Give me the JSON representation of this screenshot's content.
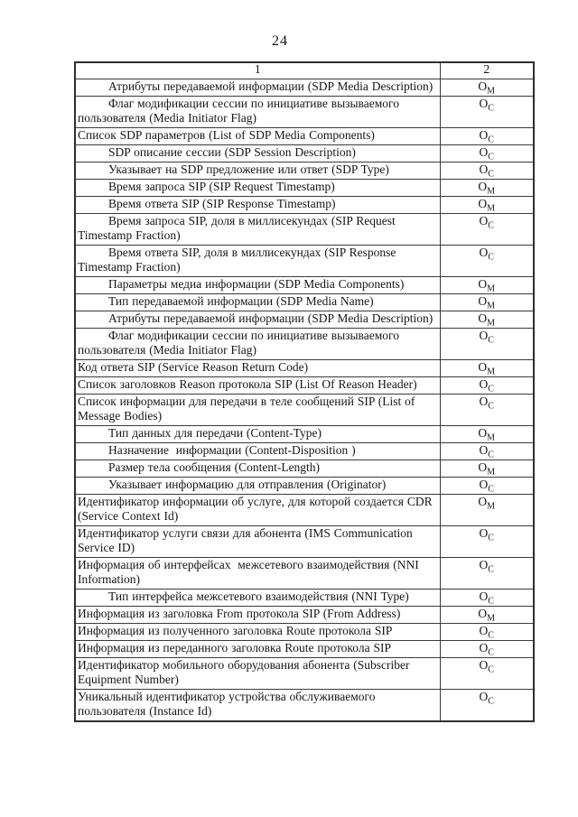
{
  "page": {
    "number": "24"
  },
  "table": {
    "headers": [
      "1",
      "2"
    ],
    "rows": [
      {
        "label": "Атрибуты передаваемой информации (SDP Media Description)",
        "indent": true,
        "value": {
          "base": "О",
          "sub": "М"
        }
      },
      {
        "label": "Флаг модификации сессии по инициативе вызываемого пользователя (Media Initiator Flag)",
        "indent": true,
        "value": {
          "base": "О",
          "sub": "С"
        }
      },
      {
        "label": "Список SDP параметров (List of SDP Media Components)",
        "indent": false,
        "value": {
          "base": "О",
          "sub": "С"
        }
      },
      {
        "label": "SDP описание сессии (SDP Session Description)",
        "indent": true,
        "value": {
          "base": "О",
          "sub": "С"
        }
      },
      {
        "label": "Указывает на SDP предложение или ответ (SDP Type)",
        "indent": true,
        "value": {
          "base": "О",
          "sub": "С"
        }
      },
      {
        "label": "Время запроса SIP (SIP Request Timestamp)",
        "indent": true,
        "value": {
          "base": "О",
          "sub": "М"
        }
      },
      {
        "label": "Время ответа SIP (SIP Response Timestamp)",
        "indent": true,
        "value": {
          "base": "О",
          "sub": "М"
        }
      },
      {
        "label": "Время запроса SIP, доля в миллисекундах (SIP Request Timestamp Fraction)",
        "indent": true,
        "value": {
          "base": "О",
          "sub": "С"
        }
      },
      {
        "label": "Время ответа SIP, доля в миллисекундах (SIP Response Timestamp Fraction)",
        "indent": true,
        "value": {
          "base": "О",
          "sub": "С"
        }
      },
      {
        "label": "Параметры медиа информации (SDP Media Components)",
        "indent": true,
        "value": {
          "base": "О",
          "sub": "М"
        }
      },
      {
        "label": "Тип передаваемой информации (SDP Media Name)",
        "indent": true,
        "value": {
          "base": "О",
          "sub": "М"
        }
      },
      {
        "label": "Атрибуты передаваемой информации (SDP Media Description)",
        "indent": true,
        "value": {
          "base": "О",
          "sub": "М"
        }
      },
      {
        "label": "Флаг модификации сессии по инициативе вызываемого пользователя (Media Initiator Flag)",
        "indent": true,
        "value": {
          "base": "О",
          "sub": "С"
        }
      },
      {
        "label": "Код ответа SIP (Service Reason Return Code)",
        "indent": false,
        "value": {
          "base": "О",
          "sub": "М"
        }
      },
      {
        "label": "Список заголовков Reason протокола SIP (List Of Reason Header)",
        "indent": false,
        "value": {
          "base": "О",
          "sub": "С"
        }
      },
      {
        "label": "Список информации для передачи в теле сообщений SIP (List of Message Bodies)",
        "indent": false,
        "value": {
          "base": "О",
          "sub": "С"
        }
      },
      {
        "label": "Тип данных для передачи (Content-Type)",
        "indent": true,
        "value": {
          "base": "О",
          "sub": "М"
        }
      },
      {
        "label": "Назначение  информации (Content-Disposition )",
        "indent": true,
        "value": {
          "base": "О",
          "sub": "С"
        }
      },
      {
        "label": "Размер тела сообщения (Content-Length)",
        "indent": true,
        "value": {
          "base": "О",
          "sub": "М"
        }
      },
      {
        "label": "Указывает информацию для отправления (Originator)",
        "indent": true,
        "value": {
          "base": "О",
          "sub": "С"
        }
      },
      {
        "label": "Идентификатор информации об услуге, для которой создается CDR (Service Context Id)",
        "indent": false,
        "value": {
          "base": "О",
          "sub": "М"
        }
      },
      {
        "label": "Идентификатор услуги связи для абонента (IMS Communication Service ID)",
        "indent": false,
        "value": {
          "base": "О",
          "sub": "С"
        }
      },
      {
        "label": "Информация об интерфейсах  межсетевого взаимодействия (NNI Information)",
        "indent": false,
        "value": {
          "base": "О",
          "sub": "С"
        }
      },
      {
        "label": "Тип интерфейса межсетевого взаимодействия (NNI Type)",
        "indent": true,
        "value": {
          "base": "О",
          "sub": "С"
        }
      },
      {
        "label": "Информация из заголовка From протокола SIP (From Address)",
        "indent": false,
        "value": {
          "base": "О",
          "sub": "М"
        }
      },
      {
        "label": "Информация из полученного заголовка Route протокола SIP",
        "indent": false,
        "value": {
          "base": "О",
          "sub": "С"
        }
      },
      {
        "label": "Информация из переданного заголовка Route протокола SIP",
        "indent": false,
        "value": {
          "base": "О",
          "sub": "С"
        }
      },
      {
        "label": "Идентификатор мобильного оборудования абонента (Subscriber Equipment Number)",
        "indent": false,
        "value": {
          "base": "О",
          "sub": "С"
        }
      },
      {
        "label": "Уникальный идентификатор устройства обслуживаемого пользователя (Instance Id)",
        "indent": false,
        "value": {
          "base": "О",
          "sub": "С"
        }
      }
    ]
  }
}
